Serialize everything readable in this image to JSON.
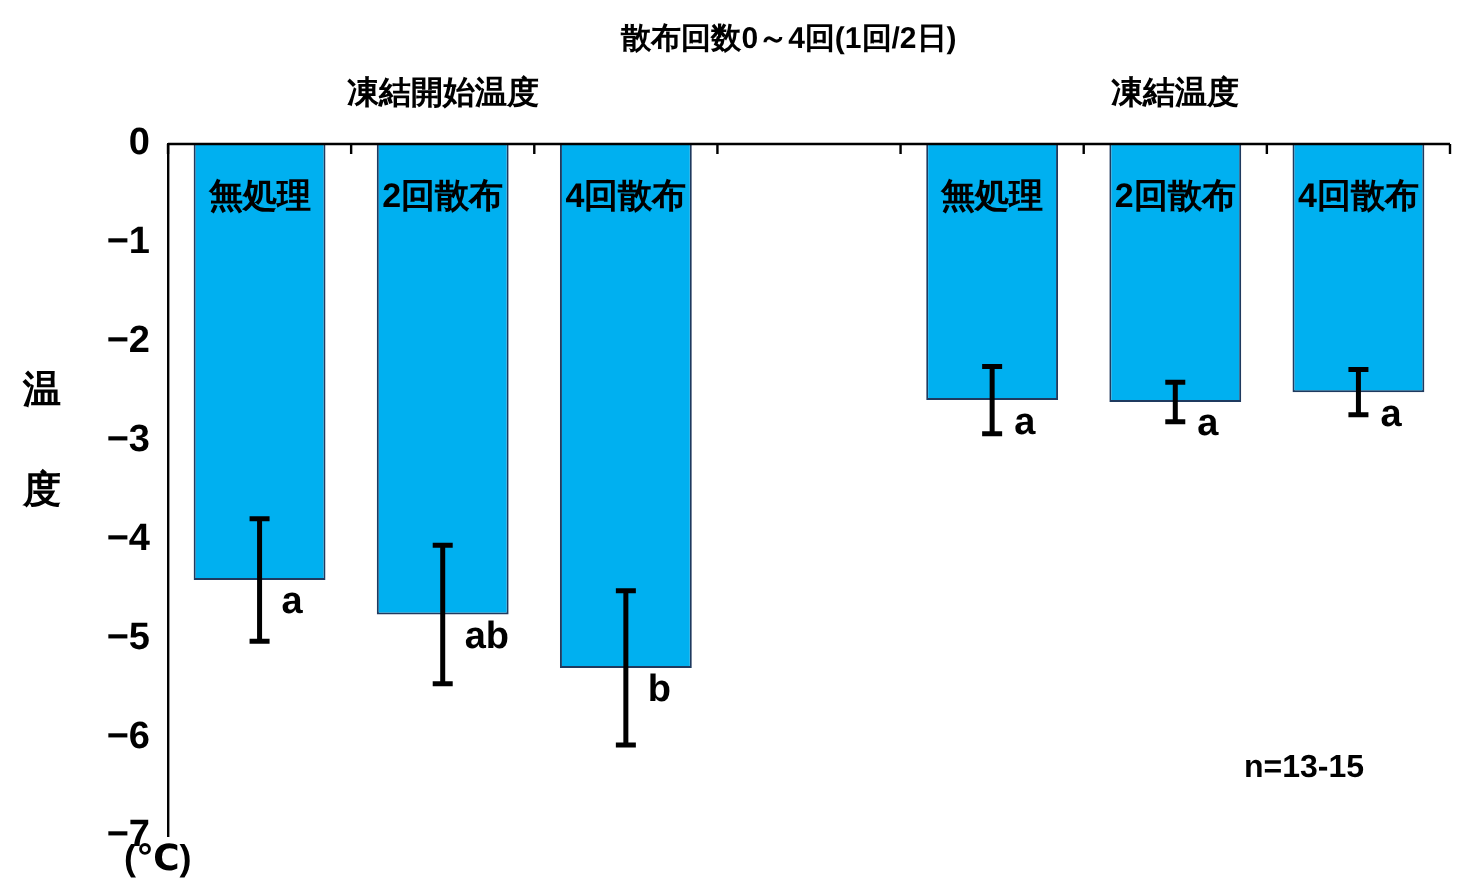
{
  "chart_data": {
    "type": "bar",
    "title": "散布回数0～4回(1回/2日)",
    "ylabel": "温度",
    "categories": [
      "無処理",
      "2回散布",
      "4回散布",
      null,
      "無処理",
      "2回散布",
      "4回散布"
    ],
    "values": [
      -4.41,
      -4.76,
      -5.3,
      null,
      -2.59,
      -2.61,
      -2.51
    ],
    "errors": [
      0.62,
      0.7,
      0.78,
      null,
      0.34,
      0.2,
      0.23
    ],
    "value_labels": [
      "a",
      "ab",
      "b",
      null,
      "a",
      "a",
      "a"
    ],
    "color": "#00b0f0",
    "ylim": [
      -7,
      0
    ],
    "yticks": [
      -7,
      -6,
      -5,
      -4,
      -3,
      -2,
      -1,
      0
    ],
    "annotations": [
      "凍結開始温度",
      "凍結温度",
      "n=13-15",
      "(℃)"
    ],
    "grid": false,
    "legend": false
  }
}
